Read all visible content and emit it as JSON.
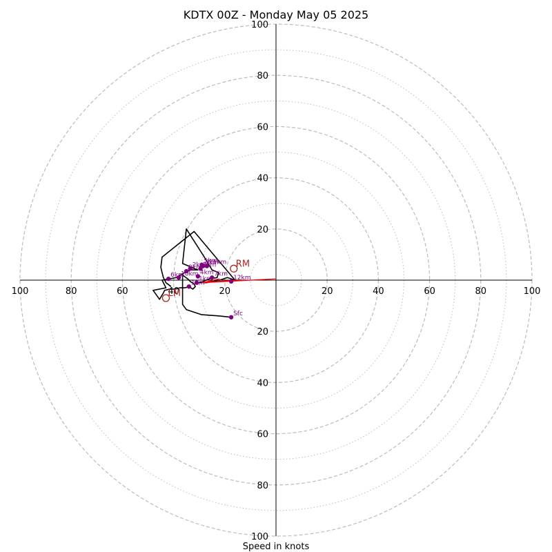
{
  "chart_data": {
    "type": "hodograph",
    "title": "KDTX 00Z - Monday May 05 2025",
    "xlabel": "Speed in knots",
    "unit": "knots",
    "range": [
      -100,
      100
    ],
    "ring_major": [
      20,
      40,
      60,
      80,
      100
    ],
    "ring_minor": [
      10,
      30,
      50,
      70,
      90
    ],
    "tick_labels": {
      "x": [
        {
          "v": -100,
          "label": "100"
        },
        {
          "v": -80,
          "label": "80"
        },
        {
          "v": -60,
          "label": "60"
        },
        {
          "v": -40,
          "label": "40"
        },
        {
          "v": -20,
          "label": "20"
        },
        {
          "v": 20,
          "label": "20"
        },
        {
          "v": 40,
          "label": "40"
        },
        {
          "v": 60,
          "label": "60"
        },
        {
          "v": 80,
          "label": "80"
        },
        {
          "v": 100,
          "label": "100"
        }
      ],
      "y": [
        {
          "v": 100,
          "label": "100"
        },
        {
          "v": 80,
          "label": "80"
        },
        {
          "v": 60,
          "label": "60"
        },
        {
          "v": 40,
          "label": "40"
        },
        {
          "v": 20,
          "label": "20"
        },
        {
          "v": -20,
          "label": "20"
        },
        {
          "v": -40,
          "label": "40"
        },
        {
          "v": -60,
          "label": "60"
        },
        {
          "v": -80,
          "label": "80"
        },
        {
          "v": -100,
          "label": "100"
        }
      ]
    },
    "hodograph_trace": [
      [
        -17.5,
        -14.5
      ],
      [
        -22,
        -14
      ],
      [
        -29,
        -13.5
      ],
      [
        -35,
        -11.5
      ],
      [
        -36.5,
        -9.5
      ],
      [
        -36.5,
        2
      ],
      [
        -34.5,
        0.5
      ],
      [
        -33.5,
        -0.5
      ],
      [
        -32,
        -1.5
      ],
      [
        -31.5,
        -2.5
      ],
      [
        -32.5,
        -3.5
      ],
      [
        -34,
        -2.5
      ],
      [
        -35.5,
        -3
      ],
      [
        -37.5,
        -3
      ],
      [
        -39.5,
        -3.5
      ],
      [
        -41.5,
        -3.5
      ],
      [
        -43.5,
        -4
      ],
      [
        -44,
        -5
      ],
      [
        -45.5,
        -7.5
      ],
      [
        -48,
        -4
      ],
      [
        -43,
        -3
      ],
      [
        -44.5,
        0
      ],
      [
        -41.5,
        0.5
      ],
      [
        -39,
        1
      ],
      [
        -36.5,
        2.5
      ],
      [
        -33.5,
        4
      ],
      [
        -30.5,
        4
      ],
      [
        -36.5,
        6.5
      ],
      [
        -35,
        20
      ],
      [
        -28,
        9
      ],
      [
        -25,
        4
      ],
      [
        -22.5,
        3
      ],
      [
        -23,
        1
      ],
      [
        -26,
        0.5
      ],
      [
        -28.5,
        -0.5
      ],
      [
        -30,
        -1
      ],
      [
        -27,
        -1
      ],
      [
        -25,
        -0.5
      ],
      [
        -22,
        0
      ],
      [
        -19,
        1
      ],
      [
        -17.5,
        0.5
      ],
      [
        -16,
        0
      ],
      [
        -32,
        19
      ],
      [
        -44.5,
        9
      ],
      [
        -45,
        5
      ],
      [
        -44.5,
        3
      ],
      [
        -44,
        1
      ],
      [
        -43,
        -1
      ],
      [
        -41,
        -2.5
      ]
    ],
    "height_markers": [
      {
        "label": "Sfc",
        "u": -17.5,
        "v": -14.5
      },
      {
        "label": "1km",
        "u": -34,
        "v": -2.5
      },
      {
        "label": "2km",
        "u": -33.5,
        "v": 4.5
      },
      {
        "label": "3km",
        "u": -29.5,
        "v": 4.5
      },
      {
        "label": "4km",
        "u": -30.5,
        "v": 1.5
      },
      {
        "label": "5km",
        "u": -29,
        "v": 6
      },
      {
        "label": "6km",
        "u": -42,
        "v": 0.5
      },
      {
        "label": "7km",
        "u": -25,
        "v": 1
      },
      {
        "label": "8km",
        "u": -28.5,
        "v": 5.5
      },
      {
        "label": "9km",
        "u": -35,
        "v": 3.5
      },
      {
        "label": "10km",
        "u": -38,
        "v": 1
      },
      {
        "label": "11km",
        "u": -27,
        "v": 5.5
      },
      {
        "label": "12km",
        "u": -17.5,
        "v": -0.5
      },
      {
        "label": "1km",
        "u": -31,
        "v": -1
      }
    ],
    "storm_motions": [
      {
        "label": "RM",
        "u": -16.5,
        "v": 4.5
      },
      {
        "label": "LM",
        "u": -43,
        "v": -7
      }
    ],
    "shear_vectors": [
      {
        "from": [
          -29,
          -1
        ],
        "to": [
          0,
          0.5
        ]
      },
      {
        "from": [
          -29,
          -1
        ],
        "to": [
          -16,
          0
        ]
      },
      {
        "from": [
          -29,
          -1
        ],
        "to": [
          -22,
          0.5
        ]
      }
    ],
    "colors": {
      "trace": "#000000",
      "height_marker": "#800080",
      "storm_motion": "#b22222",
      "shear_vector": "#ff0000",
      "grid": "#bbbbbb",
      "axes": "#000000"
    }
  }
}
